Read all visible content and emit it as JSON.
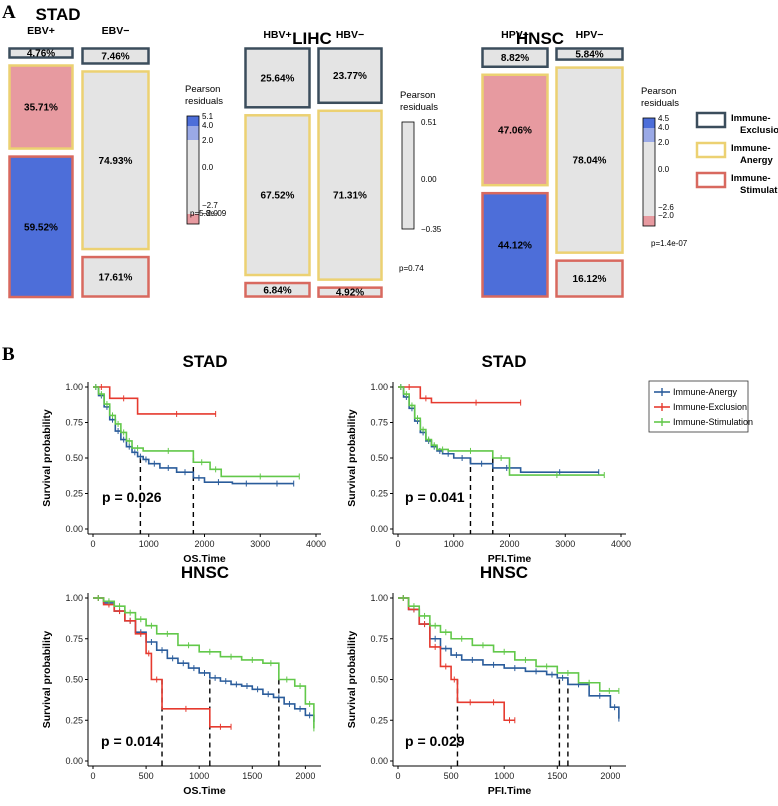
{
  "panel_a_label": "A",
  "panel_b_label": "B",
  "legend_a": {
    "items": [
      {
        "label": "Immune-Exclusion",
        "color": "#3b4d5c"
      },
      {
        "label": "Immune-Anergy",
        "color": "#ecd172"
      },
      {
        "label": "Immune-Stimulation",
        "color": "#d8695f"
      }
    ]
  },
  "legend_b": {
    "items": [
      {
        "label": "Immune-Anergy",
        "color": "#2a5c9b"
      },
      {
        "label": "Immune-Exclusion",
        "color": "#e63a2f"
      },
      {
        "label": "Immune-Stimulation",
        "color": "#62c84a"
      }
    ]
  },
  "chart_data": [
    {
      "type": "mosaic",
      "title": "STAD",
      "columns": [
        {
          "label": "EBV+",
          "segments": [
            {
              "group": "Immune-Exclusion",
              "value": 4.76,
              "label": "4.76%",
              "fill": "#e4e4e4"
            },
            {
              "group": "Immune-Anergy",
              "value": 35.71,
              "label": "35.71%",
              "fill": "#e79aa0"
            },
            {
              "group": "Immune-Stimulation",
              "value": 59.52,
              "label": "59.52%",
              "fill": "#4d6ed9"
            }
          ]
        },
        {
          "label": "EBV−",
          "segments": [
            {
              "group": "Immune-Exclusion",
              "value": 7.46,
              "label": "7.46%",
              "fill": "#e4e4e4"
            },
            {
              "group": "Immune-Anergy",
              "value": 74.93,
              "label": "74.93%",
              "fill": "#e4e4e4"
            },
            {
              "group": "Immune-Stimulation",
              "value": 17.61,
              "label": "17.61%",
              "fill": "#e4e4e4"
            }
          ]
        }
      ],
      "residual_title": "Pearson residuals",
      "residual_ticks": [
        "5.1",
        "4.0",
        "2.0",
        "0.0",
        "−2.7",
        "−2.0"
      ],
      "p_value": "p=5.8e-09"
    },
    {
      "type": "mosaic",
      "title": "LIHC",
      "columns": [
        {
          "label": "HBV+",
          "segments": [
            {
              "group": "Immune-Exclusion",
              "value": 25.64,
              "label": "25.64%",
              "fill": "#e4e4e4"
            },
            {
              "group": "Immune-Anergy",
              "value": 67.52,
              "label": "67.52%",
              "fill": "#e4e4e4"
            },
            {
              "group": "Immune-Stimulation",
              "value": 6.84,
              "label": "6.84%",
              "fill": "#e4e4e4"
            }
          ]
        },
        {
          "label": "HBV−",
          "segments": [
            {
              "group": "Immune-Exclusion",
              "value": 23.77,
              "label": "23.77%",
              "fill": "#e4e4e4"
            },
            {
              "group": "Immune-Anergy",
              "value": 71.31,
              "label": "71.31%",
              "fill": "#e4e4e4"
            },
            {
              "group": "Immune-Stimulation",
              "value": 4.92,
              "label": "4.92%",
              "fill": "#e4e4e4"
            }
          ]
        }
      ],
      "residual_title": "Pearson residuals",
      "residual_ticks": [
        "0.51",
        "0.00",
        "−0.35"
      ],
      "p_value": "p=0.74"
    },
    {
      "type": "mosaic",
      "title": "HNSC",
      "columns": [
        {
          "label": "HPV+",
          "segments": [
            {
              "group": "Immune-Exclusion",
              "value": 8.82,
              "label": "8.82%",
              "fill": "#e4e4e4"
            },
            {
              "group": "Immune-Anergy",
              "value": 47.06,
              "label": "47.06%",
              "fill": "#e79aa0"
            },
            {
              "group": "Immune-Stimulation",
              "value": 44.12,
              "label": "44.12%",
              "fill": "#4d6ed9"
            }
          ]
        },
        {
          "label": "HPV−",
          "segments": [
            {
              "group": "Immune-Exclusion",
              "value": 5.84,
              "label": "5.84%",
              "fill": "#e4e4e4"
            },
            {
              "group": "Immune-Anergy",
              "value": 78.04,
              "label": "78.04%",
              "fill": "#e4e4e4"
            },
            {
              "group": "Immune-Stimulation",
              "value": 16.12,
              "label": "16.12%",
              "fill": "#e4e4e4"
            }
          ]
        }
      ],
      "residual_title": "Pearson residuals",
      "residual_ticks": [
        "4.5",
        "4.0",
        "2.0",
        "0.0",
        "−2.6",
        "−2.0"
      ],
      "p_value": "p=1.4e-07"
    },
    {
      "type": "line",
      "subtype": "kaplan-meier",
      "title": "STAD",
      "xlabel": "OS.Time",
      "ylabel": "Survival probability",
      "xlim": [
        0,
        4000
      ],
      "ylim": [
        0,
        1
      ],
      "xticks": [
        "0",
        "1000",
        "2000",
        "3000",
        "4000"
      ],
      "yticks": [
        "0.00",
        "0.25",
        "0.50",
        "0.75",
        "1.00"
      ],
      "p_value": "p = 0.026",
      "median_times": [
        850,
        1800
      ],
      "series": [
        {
          "name": "Immune-Anergy",
          "x": [
            0,
            100,
            200,
            300,
            400,
            500,
            600,
            700,
            800,
            900,
            1000,
            1200,
            1500,
            1800,
            2000,
            2500,
            3000,
            3600
          ],
          "y": [
            1.0,
            0.94,
            0.86,
            0.77,
            0.69,
            0.63,
            0.58,
            0.54,
            0.51,
            0.49,
            0.46,
            0.43,
            0.4,
            0.36,
            0.33,
            0.32,
            0.32,
            0.32
          ]
        },
        {
          "name": "Immune-Exclusion",
          "x": [
            0,
            300,
            800,
            2200
          ],
          "y": [
            1.0,
            0.92,
            0.81,
            0.81
          ]
        },
        {
          "name": "Immune-Stimulation",
          "x": [
            0,
            100,
            200,
            300,
            400,
            500,
            600,
            700,
            900,
            1800,
            2100,
            2300,
            3700
          ],
          "y": [
            1.0,
            0.95,
            0.88,
            0.8,
            0.74,
            0.68,
            0.62,
            0.57,
            0.55,
            0.47,
            0.42,
            0.37,
            0.37
          ]
        }
      ]
    },
    {
      "type": "line",
      "subtype": "kaplan-meier",
      "title": "STAD",
      "xlabel": "PFI.Time",
      "ylabel": "Survival probability",
      "xlim": [
        0,
        4000
      ],
      "ylim": [
        0,
        1
      ],
      "xticks": [
        "0",
        "1000",
        "2000",
        "3000",
        "4000"
      ],
      "yticks": [
        "0.00",
        "0.25",
        "0.50",
        "0.75",
        "1.00"
      ],
      "p_value": "p = 0.041",
      "median_times": [
        1300,
        1700
      ],
      "series": [
        {
          "name": "Immune-Anergy",
          "x": [
            0,
            100,
            200,
            300,
            400,
            500,
            600,
            700,
            800,
            1000,
            1300,
            1700,
            2200,
            3600
          ],
          "y": [
            1.0,
            0.93,
            0.85,
            0.76,
            0.68,
            0.62,
            0.58,
            0.55,
            0.53,
            0.5,
            0.46,
            0.43,
            0.4,
            0.4
          ]
        },
        {
          "name": "Immune-Exclusion",
          "x": [
            0,
            400,
            600,
            2200
          ],
          "y": [
            1.0,
            0.92,
            0.89,
            0.89
          ]
        },
        {
          "name": "Immune-Stimulation",
          "x": [
            0,
            100,
            200,
            300,
            400,
            500,
            600,
            700,
            900,
            1700,
            2000,
            3700
          ],
          "y": [
            1.0,
            0.95,
            0.87,
            0.78,
            0.7,
            0.63,
            0.59,
            0.56,
            0.55,
            0.5,
            0.38,
            0.38
          ]
        }
      ]
    },
    {
      "type": "line",
      "subtype": "kaplan-meier",
      "title": "HNSC",
      "xlabel": "OS.Time",
      "ylabel": "Survival probability",
      "xlim": [
        0,
        2100
      ],
      "ylim": [
        0,
        1
      ],
      "xticks": [
        "0",
        "500",
        "1000",
        "1500",
        "2000"
      ],
      "yticks": [
        "0.00",
        "0.25",
        "0.50",
        "0.75",
        "1.00"
      ],
      "p_value": "p = 0.014",
      "median_times": [
        650,
        1100,
        1750
      ],
      "series": [
        {
          "name": "Immune-Anergy",
          "x": [
            0,
            100,
            200,
            300,
            400,
            500,
            600,
            700,
            800,
            900,
            1000,
            1100,
            1200,
            1300,
            1400,
            1500,
            1600,
            1700,
            1800,
            1900,
            2000,
            2080
          ],
          "y": [
            1.0,
            0.97,
            0.92,
            0.86,
            0.79,
            0.73,
            0.68,
            0.63,
            0.6,
            0.57,
            0.54,
            0.51,
            0.49,
            0.47,
            0.46,
            0.44,
            0.41,
            0.39,
            0.35,
            0.32,
            0.28,
            0.24
          ]
        },
        {
          "name": "Immune-Exclusion",
          "x": [
            0,
            100,
            200,
            300,
            400,
            500,
            550,
            650,
            1100,
            1300
          ],
          "y": [
            1.0,
            0.96,
            0.92,
            0.86,
            0.78,
            0.66,
            0.5,
            0.32,
            0.21,
            0.21
          ]
        },
        {
          "name": "Immune-Stimulation",
          "x": [
            0,
            100,
            200,
            300,
            400,
            500,
            600,
            800,
            1000,
            1200,
            1400,
            1600,
            1750,
            1900,
            2000,
            2080
          ],
          "y": [
            1.0,
            0.98,
            0.95,
            0.91,
            0.87,
            0.83,
            0.78,
            0.71,
            0.67,
            0.64,
            0.62,
            0.6,
            0.5,
            0.46,
            0.35,
            0.2
          ]
        }
      ]
    },
    {
      "type": "line",
      "subtype": "kaplan-meier",
      "title": "HNSC",
      "xlabel": "PFI.Time",
      "ylabel": "Survival probability",
      "xlim": [
        0,
        2100
      ],
      "ylim": [
        0,
        1
      ],
      "xticks": [
        "0",
        "500",
        "1000",
        "1500",
        "2000"
      ],
      "yticks": [
        "0.00",
        "0.25",
        "0.50",
        "0.75",
        "1.00"
      ],
      "p_value": "p = 0.029",
      "median_times": [
        560,
        1520,
        1600
      ],
      "series": [
        {
          "name": "Immune-Anergy",
          "x": [
            0,
            100,
            200,
            300,
            400,
            500,
            600,
            800,
            1000,
            1200,
            1400,
            1500,
            1600,
            1800,
            2000,
            2080
          ],
          "y": [
            1.0,
            0.93,
            0.84,
            0.75,
            0.69,
            0.65,
            0.62,
            0.59,
            0.57,
            0.55,
            0.53,
            0.51,
            0.47,
            0.4,
            0.33,
            0.26
          ]
        },
        {
          "name": "Immune-Exclusion",
          "x": [
            0,
            100,
            200,
            300,
            400,
            500,
            560,
            800,
            1000,
            1100
          ],
          "y": [
            1.0,
            0.93,
            0.84,
            0.7,
            0.58,
            0.5,
            0.36,
            0.36,
            0.25,
            0.25
          ]
        },
        {
          "name": "Immune-Stimulation",
          "x": [
            0,
            100,
            200,
            300,
            400,
            500,
            700,
            900,
            1100,
            1300,
            1500,
            1700,
            1900,
            2080
          ],
          "y": [
            1.0,
            0.95,
            0.89,
            0.83,
            0.79,
            0.75,
            0.71,
            0.67,
            0.62,
            0.58,
            0.54,
            0.48,
            0.43,
            0.43
          ]
        }
      ]
    }
  ]
}
